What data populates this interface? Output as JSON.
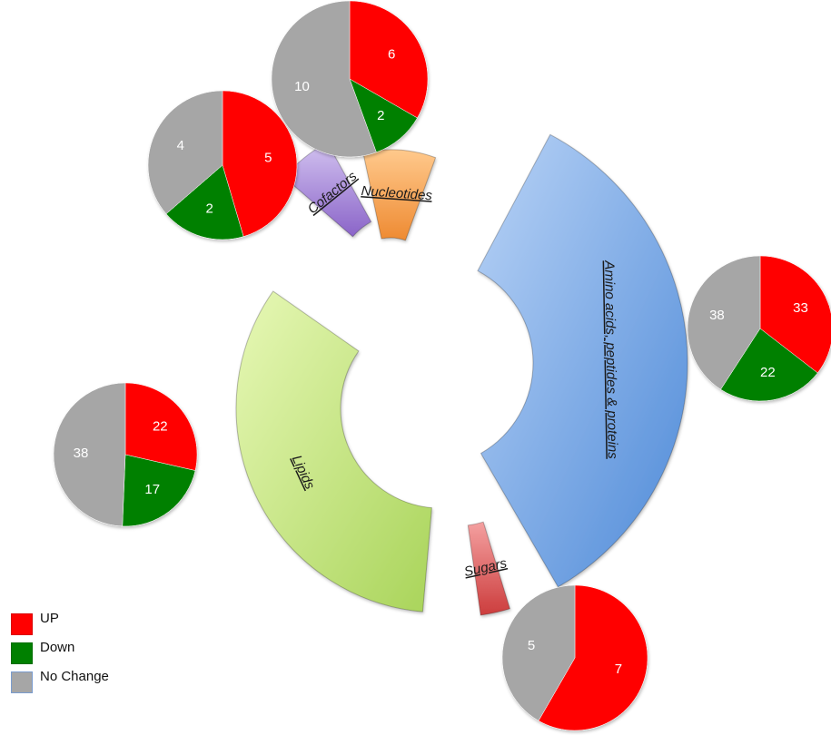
{
  "chart_data": {
    "type": "pie",
    "legend": {
      "placement": "bottom-left",
      "items": [
        {
          "label": "UP",
          "color": "#ff0000"
        },
        {
          "label": "Down",
          "color": "#008000"
        },
        {
          "label": "No Change",
          "color": "#a6a6a6"
        }
      ]
    },
    "categories": [
      {
        "name": "Nucleotides",
        "up": 6,
        "down": 2,
        "no_change": 10,
        "segment_color": "#f5a450"
      },
      {
        "name": "Cofactors",
        "up": 5,
        "down": 2,
        "no_change": 4,
        "segment_color": "#a98ad8"
      },
      {
        "name": "Amino acids, peptides & proteins",
        "up": 33,
        "down": 22,
        "no_change": 38,
        "segment_color": "#7aa8e8"
      },
      {
        "name": "Lipids",
        "up": 22,
        "down": 17,
        "no_change": 38,
        "segment_color": "#c9ec7a"
      },
      {
        "name": "Sugars",
        "up": 7,
        "down": 0,
        "no_change": 5,
        "segment_color": "#e06a6a"
      }
    ]
  }
}
